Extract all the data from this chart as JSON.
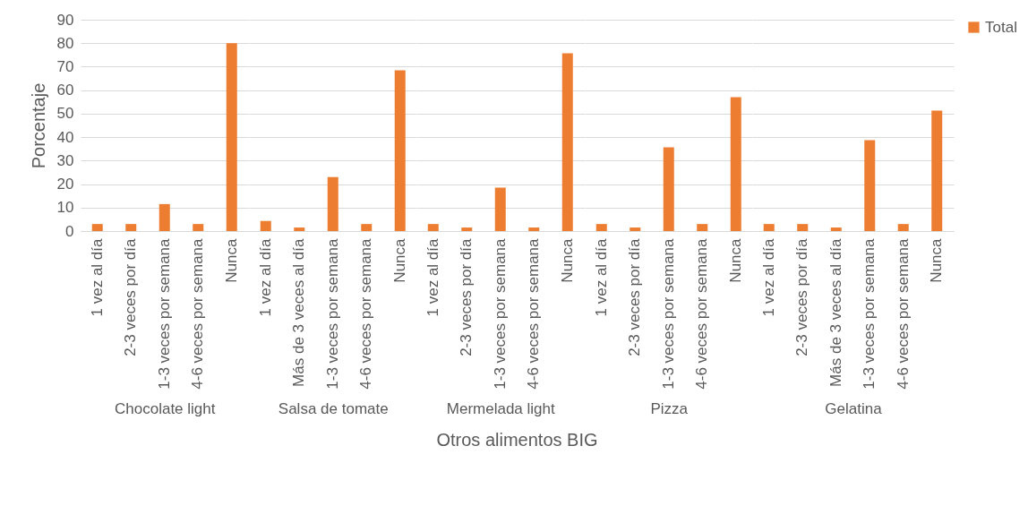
{
  "chart_data": [
    {
      "type": "bar",
      "xlabel": "Chocolate light",
      "ylabel": "Porcentaje",
      "categories": [
        "1 vez al día",
        "2-3 veces por día",
        "1-3 veces por semana",
        "4-6 veces por semana",
        "Nunca"
      ],
      "series": [
        {
          "color": "#ed7d31",
          "values": [
            3,
            3,
            11.5,
            3,
            80
          ]
        }
      ],
      "ylim": [
        0,
        90
      ],
      "yticks": [
        0,
        10,
        20,
        30,
        40,
        50,
        60,
        70,
        80,
        90
      ],
      "grid": "y",
      "legend": false,
      "annotations": [
        "Otros alimentos BIG"
      ]
    },
    {
      "type": "bar",
      "xlabel": "Salsa de tomate",
      "categories": [
        "1 vez al día",
        "Más de 3 veces al día",
        "1-3 veces por semana",
        "4-6 veces por semana",
        "Nunca"
      ],
      "series": [
        {
          "color": "#ed7d31",
          "values": [
            4.3,
            1.5,
            23,
            3,
            68.5
          ]
        }
      ],
      "ylim": [
        0,
        90
      ],
      "yticks": [
        0,
        10,
        20,
        30,
        40,
        50,
        60,
        70,
        80,
        90
      ],
      "grid": "y",
      "legend": false,
      "tick_labels": "x"
    },
    {
      "type": "bar",
      "xlabel": "Mermelada light",
      "categories": [
        "1 vez al día",
        "2-3 veces por día",
        "1-3 veces por semana",
        "4-6 veces por semana",
        "Nunca"
      ],
      "series": [
        {
          "color": "#ed7d31",
          "values": [
            3,
            1.5,
            18.5,
            1.5,
            75.7
          ]
        }
      ],
      "ylim": [
        0,
        90
      ],
      "yticks": [
        0,
        10,
        20,
        30,
        40,
        50,
        60,
        70,
        80,
        90
      ],
      "grid": "y",
      "legend": false,
      "tick_labels": "x"
    },
    {
      "type": "bar",
      "xlabel": "Pizza",
      "categories": [
        "1 vez al día",
        "2-3 veces por día",
        "1-3 veces por semana",
        "4-6 veces por semana",
        "Nunca"
      ],
      "series": [
        {
          "color": "#ed7d31",
          "values": [
            3,
            1.5,
            35.7,
            3,
            57
          ]
        }
      ],
      "ylim": [
        0,
        90
      ],
      "yticks": [
        0,
        10,
        20,
        30,
        40,
        50,
        60,
        70,
        80,
        90
      ],
      "grid": "y",
      "legend": false,
      "tick_labels": "x"
    },
    {
      "type": "bar",
      "xlabel": "Gelatina",
      "categories": [
        "1 vez al día",
        "2-3 veces por día",
        "Más de 3 veces al día",
        "1-3 veces por semana",
        "4-6 veces por semana",
        "Nunca"
      ],
      "series": [
        {
          "name": "Total",
          "color": "#ed7d31",
          "values": [
            3,
            3,
            1.5,
            38.7,
            3,
            51.3
          ]
        }
      ],
      "ylim": [
        0,
        90
      ],
      "yticks": [
        0,
        10,
        20,
        30,
        40,
        50,
        60,
        70,
        80,
        90
      ],
      "grid": "y",
      "legend": "right",
      "tick_labels": "x"
    }
  ]
}
